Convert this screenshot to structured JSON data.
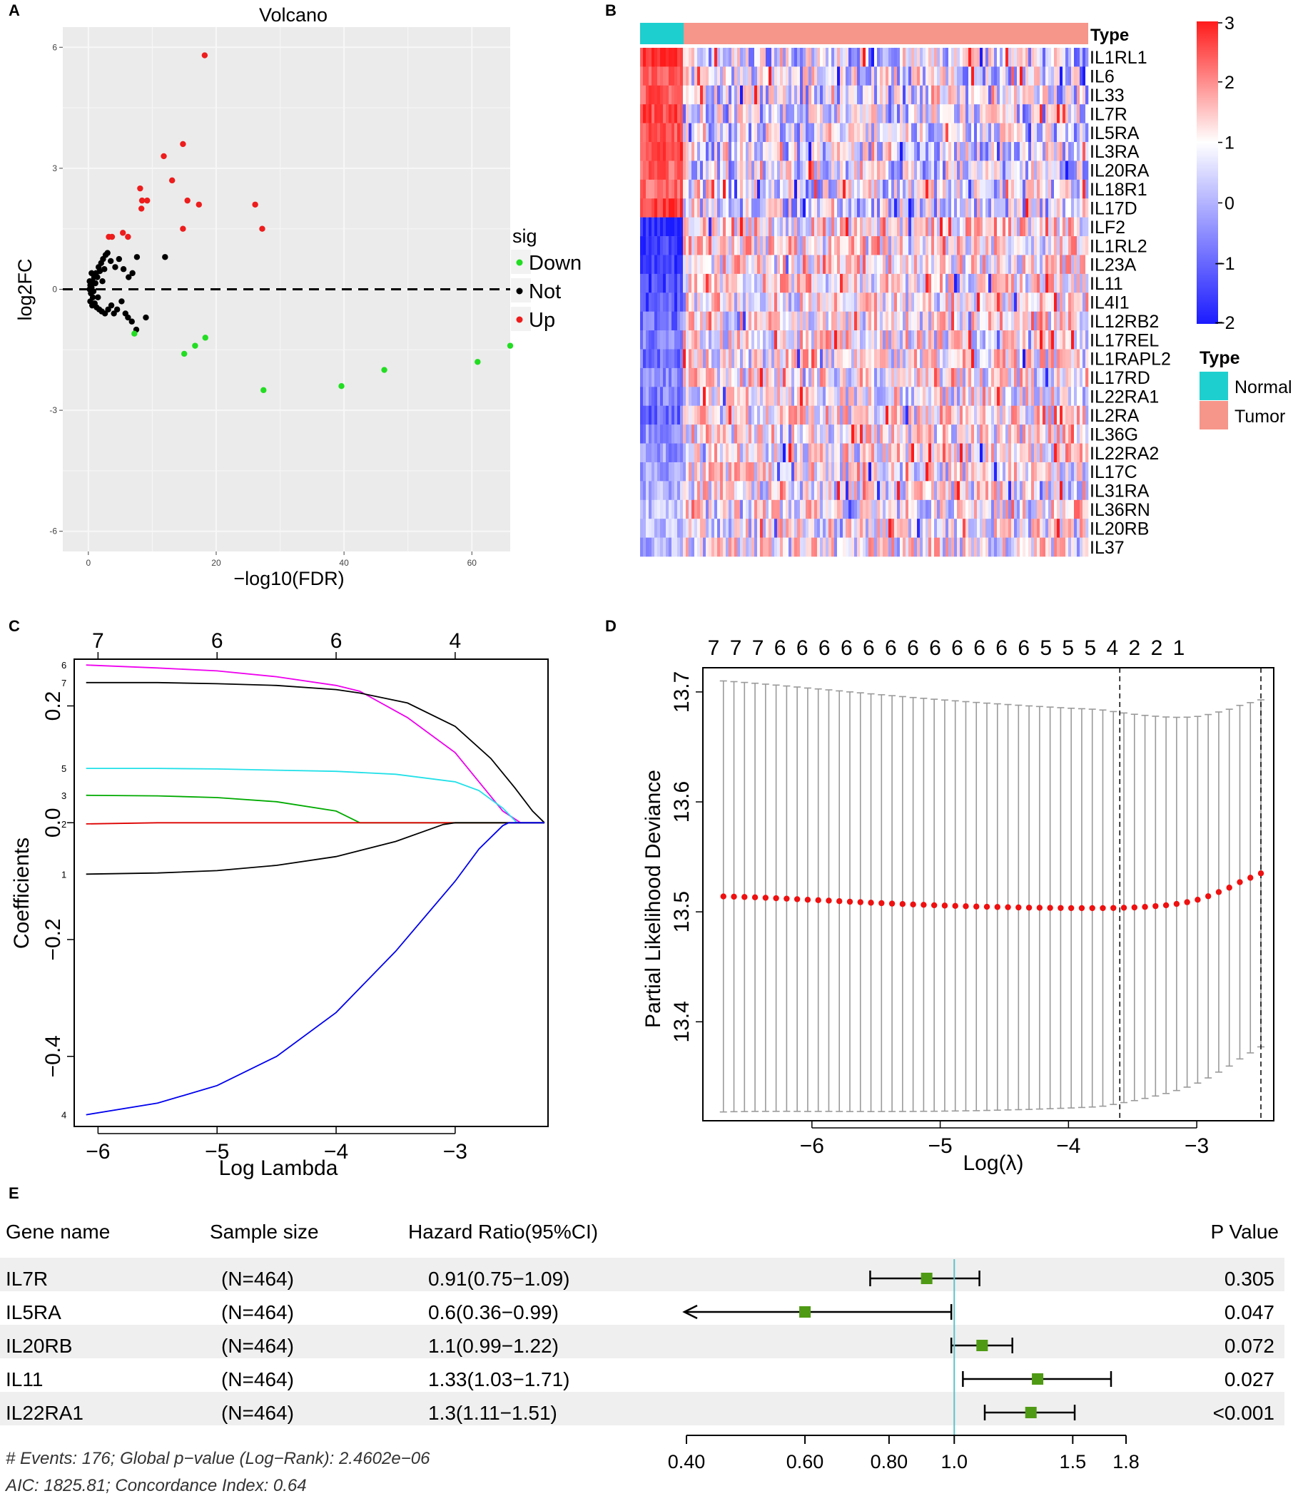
{
  "colors": {
    "up": "#ee1c1c",
    "down": "#22dd22",
    "not": "#000000",
    "normal": "#1ecfcf",
    "tumor": "#f6958a",
    "heat_low": "#1b1bff",
    "heat_mid": "#ffffff",
    "heat_high": "#ff1b1b",
    "forest_point": "#4f9a14",
    "ref_line": "#5fc2c8"
  },
  "panel_labels": {
    "a": "A",
    "b": "B",
    "c": "C",
    "d": "D",
    "e": "E"
  },
  "chart_data": [
    {
      "id": "volcano",
      "type": "scatter",
      "title": "Volcano",
      "xlabel": "−log10(FDR)",
      "ylabel": "log2FC",
      "xlim": [
        -4,
        66
      ],
      "ylim": [
        -6.5,
        6.5
      ],
      "xticks": [
        0,
        20,
        40,
        60
      ],
      "xtick_labels": [
        "0",
        "20",
        "40",
        "60"
      ],
      "yticks": [
        -6,
        -3,
        0,
        3,
        6
      ],
      "ytick_labels": [
        "-6",
        "-3",
        "0",
        "3",
        "6"
      ],
      "legend_title": "sig",
      "legend": [
        {
          "label": "Down",
          "color": "#22dd22"
        },
        {
          "label": "Not",
          "color": "#000000"
        },
        {
          "label": "Up",
          "color": "#ee1c1c"
        }
      ],
      "up": [
        [
          18.2,
          5.8
        ],
        [
          11.8,
          3.3
        ],
        [
          14.8,
          3.6
        ],
        [
          13.1,
          2.7
        ],
        [
          8.1,
          2.5
        ],
        [
          9.2,
          2.2
        ],
        [
          8.4,
          2.2
        ],
        [
          8.3,
          2.0
        ],
        [
          15.5,
          2.2
        ],
        [
          17.3,
          2.1
        ],
        [
          26.1,
          2.1
        ],
        [
          27.2,
          1.5
        ],
        [
          14.8,
          1.5
        ],
        [
          5.4,
          1.4
        ],
        [
          6.2,
          1.3
        ],
        [
          3.2,
          1.3
        ],
        [
          3.7,
          1.3
        ]
      ],
      "down": [
        [
          7.2,
          -1.1
        ],
        [
          18.3,
          -1.2
        ],
        [
          16.7,
          -1.4
        ],
        [
          15.0,
          -1.6
        ],
        [
          27.4,
          -2.5
        ],
        [
          39.6,
          -2.4
        ],
        [
          46.3,
          -2.0
        ],
        [
          60.9,
          -1.8
        ],
        [
          66.0,
          -1.4
        ]
      ],
      "not": [
        [
          0.3,
          0.1
        ],
        [
          0.6,
          0.2
        ],
        [
          0.9,
          0.3
        ],
        [
          1.2,
          0.4
        ],
        [
          1.6,
          0.55
        ],
        [
          2.0,
          0.65
        ],
        [
          2.3,
          0.75
        ],
        [
          2.7,
          0.85
        ],
        [
          3.0,
          0.9
        ],
        [
          1.4,
          0.3
        ],
        [
          1.8,
          0.45
        ],
        [
          2.5,
          0.5
        ],
        [
          3.5,
          0.7
        ],
        [
          4.2,
          0.55
        ],
        [
          4.8,
          0.75
        ],
        [
          5.5,
          0.5
        ],
        [
          6.3,
          0.3
        ],
        [
          6.9,
          0.4
        ],
        [
          7.6,
          0.8
        ],
        [
          12.0,
          0.8
        ],
        [
          0.4,
          -0.1
        ],
        [
          0.7,
          -0.2
        ],
        [
          1.0,
          -0.35
        ],
        [
          1.3,
          -0.45
        ],
        [
          1.7,
          -0.5
        ],
        [
          2.1,
          -0.55
        ],
        [
          2.6,
          -0.6
        ],
        [
          3.1,
          -0.5
        ],
        [
          3.6,
          -0.4
        ],
        [
          4.0,
          -0.6
        ],
        [
          4.5,
          -0.5
        ],
        [
          5.2,
          -0.3
        ],
        [
          5.8,
          -0.6
        ],
        [
          6.2,
          -0.7
        ],
        [
          6.8,
          -0.8
        ],
        [
          7.5,
          -1.0
        ],
        [
          9.0,
          -0.7
        ],
        [
          0.2,
          0.0
        ],
        [
          0.5,
          0.05
        ],
        [
          0.8,
          -0.05
        ],
        [
          1.1,
          0.15
        ],
        [
          0.3,
          -0.3
        ],
        [
          0.5,
          0.4
        ],
        [
          1.5,
          -0.2
        ],
        [
          2.2,
          0.2
        ],
        [
          0.2,
          0.2
        ],
        [
          0.6,
          -0.4
        ]
      ]
    },
    {
      "id": "heatmap",
      "type": "heatmap",
      "annotation_label": "Type",
      "genes": [
        "IL1RL1",
        "IL6",
        "IL33",
        "IL7R",
        "IL5RA",
        "IL3RA",
        "IL20RA",
        "IL18R1",
        "IL17D",
        "ILF2",
        "IL1RL2",
        "IL23A",
        "IL11",
        "IL4I1",
        "IL12RB2",
        "IL17REL",
        "IL1RAPL2",
        "IL17RD",
        "IL22RA1",
        "IL2RA",
        "IL36G",
        "IL22RA2",
        "IL17C",
        "IL31RA",
        "IL36RN",
        "IL20RB",
        "IL37"
      ],
      "normal_bias": [
        2.0,
        1.5,
        1.6,
        1.8,
        1.6,
        1.8,
        1.5,
        1.4,
        1.9,
        -2.0,
        -1.8,
        -1.7,
        -1.6,
        -1.5,
        -1.2,
        -1.1,
        -1.2,
        -1.0,
        -1.1,
        -1.3,
        -1.0,
        -0.9,
        -0.8,
        -0.7,
        -0.6,
        -0.5,
        -0.7
      ],
      "scale_ticks": [
        3,
        2,
        1,
        0,
        -1,
        -2
      ],
      "scale_labels": [
        "3",
        "2",
        "1",
        "0",
        "−1",
        "−2"
      ],
      "scale_range": [
        -2,
        3
      ],
      "legend_title": "Type",
      "legend": [
        {
          "label": "Normal",
          "color": "#1ecfcf"
        },
        {
          "label": "Tumor",
          "color": "#f6958a"
        }
      ]
    },
    {
      "id": "lasso-coef",
      "type": "line",
      "xlabel": "Log Lambda",
      "ylabel": "Coefficients",
      "xlim": [
        -6.2,
        -2.22
      ],
      "ylim": [
        -0.52,
        0.28
      ],
      "xticks": [
        -6,
        -5,
        -4,
        -3
      ],
      "xtick_labels": [
        "−6",
        "−5",
        "−4",
        "−3"
      ],
      "yticks": [
        -0.4,
        -0.2,
        0.0,
        0.2
      ],
      "ytick_labels": [
        "−0.4",
        "−0.2",
        "0.0",
        "0.2"
      ],
      "top_ticks": [
        -6,
        -5,
        -4,
        -3
      ],
      "top_labels": [
        "7",
        "6",
        "6",
        "4"
      ],
      "series": [
        {
          "name": "6",
          "color": "#ee00ee",
          "values": [
            [
              -6.1,
              0.27
            ],
            [
              -5.5,
              0.265
            ],
            [
              -5.0,
              0.26
            ],
            [
              -4.5,
              0.25
            ],
            [
              -4.0,
              0.235
            ],
            [
              -3.8,
              0.225
            ],
            [
              -3.4,
              0.18
            ],
            [
              -3.0,
              0.12
            ],
            [
              -2.8,
              0.07
            ],
            [
              -2.6,
              0.02
            ],
            [
              -2.45,
              0.0
            ],
            [
              -2.25,
              0.0
            ]
          ]
        },
        {
          "name": "7",
          "color": "#000000",
          "values": [
            [
              -6.1,
              0.24
            ],
            [
              -5.5,
              0.24
            ],
            [
              -5.0,
              0.238
            ],
            [
              -4.5,
              0.235
            ],
            [
              -4.0,
              0.228
            ],
            [
              -3.8,
              0.222
            ],
            [
              -3.4,
              0.205
            ],
            [
              -3.0,
              0.165
            ],
            [
              -2.7,
              0.11
            ],
            [
              -2.5,
              0.06
            ],
            [
              -2.35,
              0.02
            ],
            [
              -2.25,
              0.0
            ]
          ]
        },
        {
          "name": "5",
          "color": "#22e0e8",
          "values": [
            [
              -6.1,
              0.093
            ],
            [
              -5.5,
              0.093
            ],
            [
              -5.0,
              0.092
            ],
            [
              -4.5,
              0.09
            ],
            [
              -4.0,
              0.088
            ],
            [
              -3.5,
              0.083
            ],
            [
              -3.0,
              0.07
            ],
            [
              -2.8,
              0.055
            ],
            [
              -2.6,
              0.025
            ],
            [
              -2.48,
              0.0
            ],
            [
              -2.25,
              0.0
            ]
          ]
        },
        {
          "name": "3",
          "color": "#00aa00",
          "values": [
            [
              -6.1,
              0.047
            ],
            [
              -5.5,
              0.046
            ],
            [
              -5.0,
              0.043
            ],
            [
              -4.5,
              0.036
            ],
            [
              -4.0,
              0.02
            ],
            [
              -3.8,
              0.0
            ],
            [
              -2.25,
              0.0
            ]
          ]
        },
        {
          "name": "2",
          "color": "#dd0000",
          "values": [
            [
              -6.1,
              -0.002
            ],
            [
              -5.5,
              0.0
            ],
            [
              -2.25,
              0.0
            ]
          ]
        },
        {
          "name": "1",
          "color": "#000000",
          "values": [
            [
              -6.1,
              -0.088
            ],
            [
              -5.5,
              -0.086
            ],
            [
              -5.0,
              -0.082
            ],
            [
              -4.5,
              -0.073
            ],
            [
              -4.0,
              -0.058
            ],
            [
              -3.5,
              -0.032
            ],
            [
              -3.1,
              -0.003
            ],
            [
              -3.0,
              0.0
            ],
            [
              -2.25,
              0.0
            ]
          ]
        },
        {
          "name": "4",
          "color": "#0000ee",
          "values": [
            [
              -6.1,
              -0.5
            ],
            [
              -5.5,
              -0.48
            ],
            [
              -5.0,
              -0.45
            ],
            [
              -4.5,
              -0.4
            ],
            [
              -4.0,
              -0.325
            ],
            [
              -3.5,
              -0.22
            ],
            [
              -3.0,
              -0.1
            ],
            [
              -2.8,
              -0.045
            ],
            [
              -2.6,
              -0.005
            ],
            [
              -2.55,
              0.0
            ],
            [
              -2.25,
              0.0
            ]
          ]
        }
      ]
    },
    {
      "id": "lasso-cv",
      "type": "scatter",
      "xlabel": "Log(λ)",
      "ylabel": "Partial Likelihood Deviance",
      "xlim": [
        -6.85,
        -2.4
      ],
      "ylim": [
        13.31,
        13.722
      ],
      "xticks": [
        -6,
        -5,
        -4,
        -3
      ],
      "xtick_labels": [
        "−6",
        "−5",
        "−4",
        "−3"
      ],
      "yticks": [
        13.4,
        13.5,
        13.6,
        13.7
      ],
      "ytick_labels": [
        "13.4",
        "13.5",
        "13.6",
        "13.7"
      ],
      "top_labels": [
        "7",
        "7",
        "7",
        "6",
        "6",
        "6",
        "6",
        "6",
        "6",
        "6",
        "6",
        "6",
        "6",
        "6",
        "6",
        "5",
        "5",
        "5",
        "4",
        "2",
        "2",
        "1"
      ],
      "lambda_start": -6.69,
      "lambda_end": -2.5,
      "points": [
        13.514,
        13.5138,
        13.5135,
        13.5132,
        13.5128,
        13.5124,
        13.512,
        13.5115,
        13.511,
        13.5106,
        13.5102,
        13.5097,
        13.5092,
        13.5088,
        13.5083,
        13.5079,
        13.5075,
        13.5071,
        13.5067,
        13.5064,
        13.506,
        13.5057,
        13.5054,
        13.5051,
        13.5048,
        13.5046,
        13.5044,
        13.5042,
        13.504,
        13.5038,
        13.5037,
        13.5036,
        13.5035,
        13.5034,
        13.5034,
        13.5034,
        13.5034,
        13.5035,
        13.5037,
        13.504,
        13.5045,
        13.5052,
        13.506,
        13.5072,
        13.5088,
        13.511,
        13.5142,
        13.518,
        13.522,
        13.527,
        13.531,
        13.535
      ],
      "dashed_lines": [
        -3.6,
        -2.5
      ]
    },
    {
      "id": "forest",
      "type": "table",
      "headers": [
        "Gene name",
        "Sample size",
        "Hazard Ratio(95%CI)",
        "P Value"
      ],
      "rows": [
        {
          "gene": "IL7R",
          "n": "(N=464)",
          "hr_text": "0.91(0.75−1.09)",
          "hr": 0.91,
          "lo": 0.75,
          "hi": 1.09,
          "p": "0.305",
          "arrow": false
        },
        {
          "gene": "IL5RA",
          "n": "(N=464)",
          "hr_text": "0.6(0.36−0.99)",
          "hr": 0.6,
          "lo": 0.36,
          "hi": 0.99,
          "p": "0.047",
          "arrow": true
        },
        {
          "gene": "IL20RB",
          "n": "(N=464)",
          "hr_text": "1.1(0.99−1.22)",
          "hr": 1.1,
          "lo": 0.99,
          "hi": 1.22,
          "p": "0.072",
          "arrow": false
        },
        {
          "gene": "IL11",
          "n": "(N=464)",
          "hr_text": "1.33(1.03−1.71)",
          "hr": 1.33,
          "lo": 1.03,
          "hi": 1.71,
          "p": "0.027",
          "arrow": false
        },
        {
          "gene": "IL22RA1",
          "n": "(N=464)",
          "hr_text": "1.3(1.11−1.51)",
          "hr": 1.3,
          "lo": 1.11,
          "hi": 1.51,
          "p": "<0.001",
          "arrow": false
        }
      ],
      "axis_ticks": [
        0.4,
        0.6,
        0.8,
        1.0,
        1.5,
        1.8
      ],
      "axis_labels": [
        "0.40",
        "0.60",
        "0.80",
        "1.0",
        "1.5",
        "1.8"
      ],
      "reference": 1.0,
      "footnote_1": "# Events: 176; Global p−value (Log−Rank): 2.4602e−06",
      "footnote_2": "AIC: 1825.81; Concordance Index: 0.64"
    }
  ]
}
